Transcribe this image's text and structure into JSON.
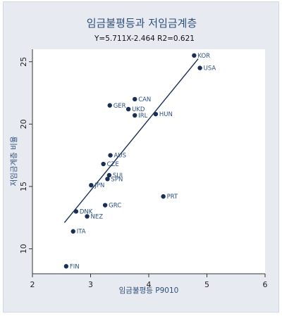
{
  "chart_data": {
    "type": "scatter",
    "title": "임금불평등과 저임금계층",
    "subtitle": "Y=5.711X-2.464 R2=0.621",
    "xlabel": "임금불평등 P9010",
    "ylabel": "저임금계층 비율",
    "xlim": [
      2,
      6
    ],
    "ylim": [
      8,
      26
    ],
    "xticks": [
      2,
      3,
      4,
      5,
      6
    ],
    "yticks": [
      10,
      15,
      20,
      25
    ],
    "grid": false,
    "marker_color": "#1a2f55",
    "line_color": "#1a2f55",
    "fit_line": {
      "slope": 5.711,
      "intercept": -2.464,
      "x_range": [
        2.55,
        4.85
      ]
    },
    "points": [
      {
        "label": "KOR",
        "x": 4.78,
        "y": 25.5
      },
      {
        "label": "USA",
        "x": 4.88,
        "y": 24.5
      },
      {
        "label": "CAN",
        "x": 3.76,
        "y": 22.0
      },
      {
        "label": "GER",
        "x": 3.33,
        "y": 21.5
      },
      {
        "label": "UKD",
        "x": 3.65,
        "y": 21.2
      },
      {
        "label": "IRL",
        "x": 3.76,
        "y": 20.7
      },
      {
        "label": "HUN",
        "x": 4.12,
        "y": 20.8
      },
      {
        "label": "AUS",
        "x": 3.34,
        "y": 17.5
      },
      {
        "label": "CZE",
        "x": 3.22,
        "y": 16.8
      },
      {
        "label": "SUI",
        "x": 3.32,
        "y": 15.9
      },
      {
        "label": "SPN",
        "x": 3.29,
        "y": 15.6
      },
      {
        "label": "JPN",
        "x": 3.01,
        "y": 15.1
      },
      {
        "label": "PRT",
        "x": 4.25,
        "y": 14.2
      },
      {
        "label": "GRC",
        "x": 3.25,
        "y": 13.5
      },
      {
        "label": "DNK",
        "x": 2.75,
        "y": 13.0
      },
      {
        "label": "NEZ",
        "x": 2.94,
        "y": 12.6
      },
      {
        "label": "ITA",
        "x": 2.7,
        "y": 11.4
      },
      {
        "label": "FIN",
        "x": 2.58,
        "y": 8.6
      }
    ]
  }
}
